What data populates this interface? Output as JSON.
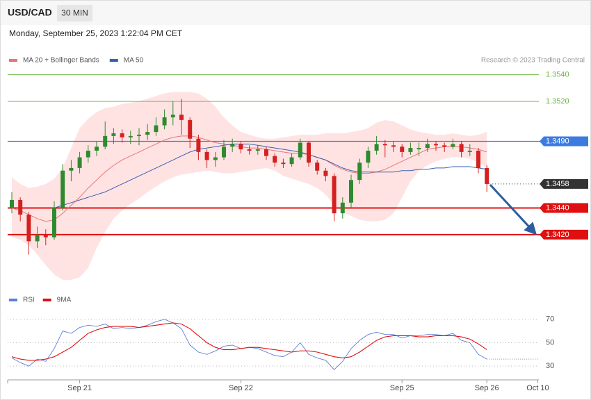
{
  "header": {
    "symbol": "USD/CAD",
    "interval": "30 MIN",
    "datetime": "Monday, September 25, 2023 1:22:04 PM CET",
    "credit": "Research © 2023 Trading Central"
  },
  "chart_data": {
    "type": "candlestick",
    "categories": [
      null,
      null,
      null,
      null,
      null,
      null,
      null,
      null,
      "Sep 21",
      null,
      null,
      null,
      null,
      null,
      null,
      null,
      null,
      null,
      null,
      null,
      null,
      null,
      null,
      null,
      null,
      null,
      null,
      "Sep 22",
      null,
      null,
      null,
      null,
      null,
      null,
      null,
      null,
      null,
      null,
      null,
      null,
      null,
      null,
      null,
      null,
      null,
      null,
      "Sep 25",
      null,
      null,
      null,
      null,
      null,
      null,
      null,
      null,
      null,
      "Sep 26",
      null,
      null,
      null,
      null,
      null,
      "Oct 10"
    ],
    "ylim": [
      1.3385,
      1.3545
    ],
    "up_color": "#2f8a2f",
    "down_color": "#d42020",
    "ohlc": [
      [
        1.344,
        1.3452,
        1.3436,
        1.3446
      ],
      [
        1.3446,
        1.3448,
        1.343,
        1.3435
      ],
      [
        1.3435,
        1.3437,
        1.3405,
        1.3415
      ],
      [
        1.3415,
        1.3426,
        1.341,
        1.342
      ],
      [
        1.342,
        1.3424,
        1.3412,
        1.3418
      ],
      [
        1.3418,
        1.3445,
        1.3416,
        1.344
      ],
      [
        1.344,
        1.3473,
        1.3438,
        1.3468
      ],
      [
        1.3468,
        1.3476,
        1.346,
        1.347
      ],
      [
        1.347,
        1.3482,
        1.3466,
        1.3478
      ],
      [
        1.3478,
        1.3487,
        1.3474,
        1.3483
      ],
      [
        1.3483,
        1.349,
        1.3479,
        1.3486
      ],
      [
        1.3486,
        1.3505,
        1.3484,
        1.3494
      ],
      [
        1.3494,
        1.35,
        1.3488,
        1.3496
      ],
      [
        1.3496,
        1.3499,
        1.3489,
        1.3493
      ],
      [
        1.3493,
        1.3498,
        1.3488,
        1.3494
      ],
      [
        1.3494,
        1.35,
        1.3487,
        1.3495
      ],
      [
        1.3495,
        1.3503,
        1.3491,
        1.3497
      ],
      [
        1.3497,
        1.3508,
        1.3494,
        1.3502
      ],
      [
        1.3502,
        1.3514,
        1.3499,
        1.3508
      ],
      [
        1.3508,
        1.352,
        1.3502,
        1.351
      ],
      [
        1.351,
        1.3522,
        1.3495,
        1.3506
      ],
      [
        1.3506,
        1.3508,
        1.3485,
        1.3492
      ],
      [
        1.3492,
        1.3495,
        1.3476,
        1.3482
      ],
      [
        1.3482,
        1.3484,
        1.347,
        1.3476
      ],
      [
        1.3476,
        1.3482,
        1.3471,
        1.3478
      ],
      [
        1.3478,
        1.3491,
        1.3476,
        1.3486
      ],
      [
        1.3486,
        1.3492,
        1.3482,
        1.3488
      ],
      [
        1.3488,
        1.349,
        1.3481,
        1.3484
      ],
      [
        1.3484,
        1.3487,
        1.348,
        1.3483
      ],
      [
        1.3483,
        1.3487,
        1.348,
        1.3484
      ],
      [
        1.3484,
        1.3486,
        1.3476,
        1.3479
      ],
      [
        1.3479,
        1.3481,
        1.3471,
        1.3474
      ],
      [
        1.3474,
        1.3477,
        1.347,
        1.3473
      ],
      [
        1.3473,
        1.3481,
        1.3471,
        1.3478
      ],
      [
        1.3478,
        1.3492,
        1.3476,
        1.3489
      ],
      [
        1.3489,
        1.349,
        1.3471,
        1.3474
      ],
      [
        1.3474,
        1.3476,
        1.3465,
        1.3468
      ],
      [
        1.3468,
        1.347,
        1.346,
        1.3464
      ],
      [
        1.3464,
        1.3466,
        1.343,
        1.3436
      ],
      [
        1.3436,
        1.3448,
        1.3432,
        1.3444
      ],
      [
        1.3444,
        1.3465,
        1.344,
        1.3461
      ],
      [
        1.3461,
        1.3477,
        1.3458,
        1.3474
      ],
      [
        1.3474,
        1.3486,
        1.347,
        1.3483
      ],
      [
        1.3483,
        1.3494,
        1.348,
        1.3488
      ],
      [
        1.3488,
        1.3491,
        1.3478,
        1.3487
      ],
      [
        1.3487,
        1.349,
        1.3482,
        1.3486
      ],
      [
        1.3486,
        1.3488,
        1.3478,
        1.3482
      ],
      [
        1.3482,
        1.3489,
        1.348,
        1.3485
      ],
      [
        1.3484,
        1.3489,
        1.3479,
        1.3485
      ],
      [
        1.3485,
        1.3492,
        1.3482,
        1.3488
      ],
      [
        1.3488,
        1.349,
        1.3483,
        1.3487
      ],
      [
        1.3487,
        1.3489,
        1.3482,
        1.3486
      ],
      [
        1.3486,
        1.3492,
        1.3484,
        1.3488
      ],
      [
        1.3488,
        1.349,
        1.3478,
        1.3482
      ],
      [
        1.3482,
        1.3488,
        1.3479,
        1.3483
      ],
      [
        1.3483,
        1.3485,
        1.3466,
        1.347
      ],
      [
        1.347,
        1.3472,
        1.3452,
        1.3458
      ]
    ],
    "overlays": [
      {
        "name": "MA 20 + Bollinger Bands",
        "color": "#e87575",
        "band_color": "#ffdede",
        "values": [
          1.344,
          1.3438,
          1.3435,
          1.3432,
          1.343,
          1.3431,
          1.3436,
          1.3442,
          1.3448,
          1.3455,
          1.3461,
          1.3467,
          1.3472,
          1.3476,
          1.3479,
          1.3482,
          1.3485,
          1.3488,
          1.3491,
          1.3493,
          1.3494,
          1.3494,
          1.3493,
          1.3491,
          1.3489,
          1.3488,
          1.3487,
          1.3486,
          1.3485,
          1.3485,
          1.3484,
          1.3483,
          1.3482,
          1.3481,
          1.3481,
          1.348,
          1.3478,
          1.3476,
          1.3472,
          1.3469,
          1.3467,
          1.3466,
          1.3466,
          1.3467,
          1.3469,
          1.3472,
          1.3475,
          1.3478,
          1.3481,
          1.3484,
          1.3485,
          1.3486,
          1.3486,
          1.3486,
          1.3485,
          1.3484,
          1.3482
        ],
        "upper": [
          1.3463,
          1.3458,
          1.3455,
          1.3456,
          1.3458,
          1.3462,
          1.347,
          1.3485,
          1.35,
          1.3507,
          1.3512,
          1.3515,
          1.3516,
          1.3518,
          1.3519,
          1.352,
          1.3522,
          1.3524,
          1.3526,
          1.3527,
          1.3527,
          1.3527,
          1.3526,
          1.3522,
          1.3516,
          1.3508,
          1.3502,
          1.3497,
          1.3495,
          1.3493,
          1.3492,
          1.3492,
          1.3493,
          1.3494,
          1.3495,
          1.3495,
          1.3495,
          1.3496,
          1.3496,
          1.3496,
          1.3497,
          1.3498,
          1.35,
          1.3504,
          1.3506,
          1.3505,
          1.3502,
          1.3499,
          1.3497,
          1.3496,
          1.3495,
          1.3495,
          1.3496,
          1.3495,
          1.3494,
          1.3495,
          1.3497
        ],
        "lower": [
          1.3418,
          1.3416,
          1.3412,
          1.3405,
          1.3397,
          1.339,
          1.3386,
          1.3386,
          1.3388,
          1.3395,
          1.341,
          1.3422,
          1.3432,
          1.3438,
          1.3443,
          1.3447,
          1.3452,
          1.3456,
          1.346,
          1.3463,
          1.3465,
          1.3466,
          1.3467,
          1.3468,
          1.3467,
          1.3466,
          1.3466,
          1.3467,
          1.3468,
          1.3469,
          1.347,
          1.3468,
          1.3464,
          1.3462,
          1.346,
          1.3458,
          1.3455,
          1.345,
          1.3442,
          1.3437,
          1.3434,
          1.3431,
          1.343,
          1.343,
          1.3431,
          1.3436,
          1.3448,
          1.346,
          1.3468,
          1.3472,
          1.3475,
          1.3477,
          1.3478,
          1.3478,
          1.3477,
          1.3474,
          1.347
        ]
      },
      {
        "name": "MA 50",
        "color": "#3a5fb0",
        "values": [
          null,
          null,
          null,
          null,
          null,
          1.344,
          1.3442,
          1.3444,
          1.3446,
          1.3448,
          1.345,
          1.3452,
          1.3455,
          1.3458,
          1.3461,
          1.3464,
          1.3467,
          1.347,
          1.3473,
          1.3476,
          1.3479,
          1.3482,
          1.3484,
          1.3485,
          1.3486,
          1.3487,
          1.3488,
          1.3488,
          1.3488,
          1.3487,
          1.3486,
          1.3485,
          1.3484,
          1.3483,
          1.3482,
          1.348,
          1.3478,
          1.3476,
          1.3473,
          1.347,
          1.3468,
          1.3467,
          1.3467,
          1.3467,
          1.3467,
          1.3467,
          1.3468,
          1.3468,
          1.3469,
          1.3469,
          1.347,
          1.347,
          1.3471,
          1.3471,
          1.3471,
          1.347,
          1.3469
        ]
      }
    ],
    "levels": [
      {
        "value": 1.354,
        "label": "1.3540",
        "color": "#6fb43f",
        "style": "plain"
      },
      {
        "value": 1.352,
        "label": "1.3520",
        "color": "#6fb43f",
        "style": "plain"
      },
      {
        "value": 1.349,
        "label": "1.3490",
        "color": "#3c7be0",
        "style": "tag"
      },
      {
        "value": 1.3458,
        "label": "1.3458",
        "color": "#333333",
        "style": "dotted"
      },
      {
        "value": 1.344,
        "label": "1.3440",
        "color": "#e01010",
        "style": "thick"
      },
      {
        "value": 1.342,
        "label": "1.3420",
        "color": "#e01010",
        "style": "thick"
      }
    ],
    "indicator": {
      "ylim": [
        20,
        80
      ],
      "yticks": [
        30,
        50,
        70
      ],
      "grid": true,
      "series": [
        {
          "name": "RSI",
          "color": "#5b7fd6",
          "values": [
            37,
            33,
            30,
            36,
            34,
            45,
            60,
            58,
            63,
            65,
            64,
            66,
            62,
            63,
            62,
            63,
            65,
            68,
            70,
            67,
            62,
            48,
            42,
            40,
            43,
            47,
            48,
            45,
            46,
            45,
            42,
            39,
            38,
            42,
            50,
            40,
            37,
            35,
            27,
            34,
            45,
            52,
            57,
            59,
            57,
            57,
            54,
            56,
            56,
            57,
            57,
            56,
            58,
            52,
            50,
            40,
            36
          ]
        },
        {
          "name": "9MA",
          "color": "#e01010",
          "values": [
            38,
            36,
            35,
            35,
            36,
            38,
            42,
            46,
            52,
            58,
            61,
            63,
            64,
            64,
            64,
            63,
            64,
            65,
            66,
            67,
            66,
            62,
            56,
            50,
            46,
            44,
            44,
            45,
            46,
            46,
            45,
            44,
            43,
            42,
            43,
            43,
            42,
            40,
            38,
            37,
            38,
            42,
            47,
            52,
            55,
            56,
            56,
            56,
            55,
            55,
            56,
            56,
            56,
            55,
            53,
            49,
            44
          ]
        }
      ]
    }
  }
}
